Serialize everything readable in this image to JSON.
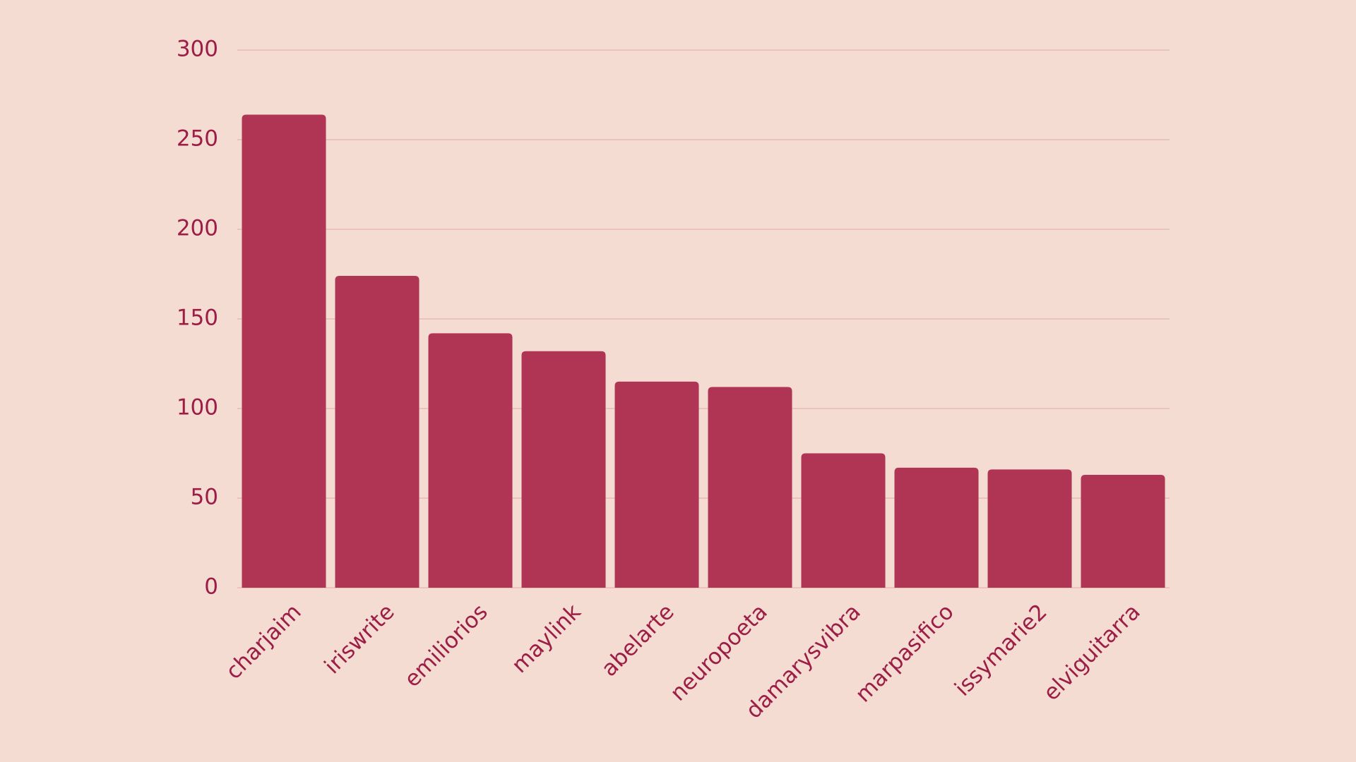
{
  "chart_data": {
    "type": "bar",
    "categories": [
      "charjaim",
      "iriswrite",
      "emiliorios",
      "maylink",
      "abelarte",
      "neuropoeta",
      "damarysvibra",
      "marpasifico",
      "issymarie2",
      "elviguitarra"
    ],
    "values": [
      264,
      174,
      142,
      132,
      115,
      112,
      75,
      67,
      66,
      63
    ],
    "color": "#b03453",
    "ylim": [
      0,
      300
    ],
    "yticks": [
      0,
      50,
      100,
      150,
      200,
      250,
      300
    ],
    "grid": true
  }
}
